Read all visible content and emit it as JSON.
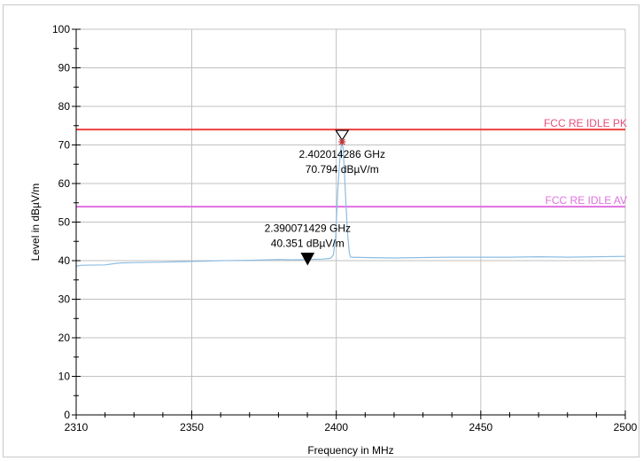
{
  "chart_data": {
    "type": "line",
    "xlabel": "Frequency in MHz",
    "ylabel": "Level in dBµV/m",
    "xlim": [
      2310,
      2500
    ],
    "ylim": [
      0,
      100
    ],
    "x_ticks": [
      "2310",
      "2350",
      "2400",
      "2450",
      "2500"
    ],
    "y_ticks": [
      "0",
      "10",
      "20",
      "30",
      "40",
      "50",
      "60",
      "70",
      "80",
      "90",
      "100"
    ],
    "grid": true,
    "series": [
      {
        "color": "#8cbde3",
        "x": [
          2310,
          2312,
          2320,
          2325,
          2330,
          2340,
          2350,
          2360,
          2370,
          2380,
          2385,
          2390,
          2395,
          2398,
          2399,
          2399.8,
          2400.5,
          2401.2,
          2401.7,
          2402.01,
          2402.4,
          2403,
          2403.8,
          2404.5,
          2405,
          2410,
          2420,
          2430,
          2440,
          2450,
          2460,
          2470,
          2480,
          2490,
          2500
        ],
        "values": [
          38.6,
          38.8,
          38.9,
          39.4,
          39.5,
          39.6,
          39.8,
          40.0,
          40.1,
          40.3,
          40.2,
          40.3,
          40.4,
          40.6,
          41.5,
          46,
          58,
          66,
          69.5,
          70.8,
          69,
          60,
          48,
          42,
          40.9,
          40.8,
          40.7,
          40.8,
          40.9,
          40.9,
          40.9,
          41.0,
          40.9,
          41.0,
          41.1
        ]
      }
    ],
    "limit_lines": [
      {
        "name": "FCC RE IDLE PK",
        "value": 74,
        "color": "#f04040",
        "label_color": "#e8507a"
      },
      {
        "name": "FCC RE IDLE AV",
        "value": 54,
        "color": "#e070e0",
        "label_color": "#e070e0"
      }
    ],
    "markers": [
      {
        "x": 2402.014286,
        "y": 70.794,
        "style": "open",
        "label_freq": "2.402014286 GHz",
        "label_level": "70.794 dBµV/m"
      },
      {
        "x": 2390.071429,
        "y": 40.351,
        "style": "filled",
        "label_freq": "2.390071429 GHz",
        "label_level": "40.351 dBµV/m"
      }
    ]
  }
}
